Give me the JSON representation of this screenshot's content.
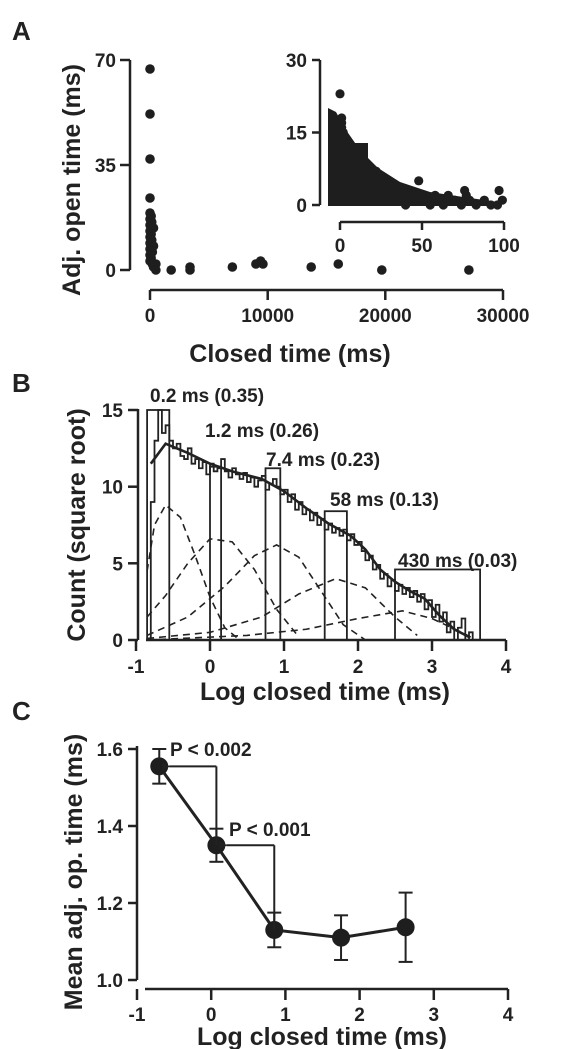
{
  "panels": {
    "A": {
      "letter": "A",
      "main": {
        "xlabel": "Closed time (ms)",
        "ylabel": "Adj. open time (ms)",
        "xticks": [
          "0",
          "10000",
          "20000",
          "30000"
        ],
        "yticks": [
          "0",
          "35",
          "70"
        ]
      },
      "inset": {
        "xticks": [
          "0",
          "50",
          "100"
        ],
        "yticks": [
          "0",
          "15",
          "30"
        ]
      }
    },
    "B": {
      "letter": "B",
      "xlabel": "Log closed time (ms)",
      "ylabel": "Count (square root)",
      "xticks": [
        "-1",
        "0",
        "1",
        "2",
        "3",
        "4"
      ],
      "yticks": [
        "0",
        "5",
        "10",
        "15"
      ],
      "components": [
        {
          "label": "0.2 ms (0.35)"
        },
        {
          "label": "1.2 ms (0.26)"
        },
        {
          "label": "7.4 ms (0.23)"
        },
        {
          "label": "58 ms (0.13)"
        },
        {
          "label": "430 ms (0.03)"
        }
      ]
    },
    "C": {
      "letter": "C",
      "xlabel": "Log closed time (ms)",
      "ylabel": "Mean adj. op. time (ms)",
      "xticks": [
        "-1",
        "0",
        "1",
        "2",
        "3",
        "4"
      ],
      "yticks": [
        "1.0",
        "1.2",
        "1.4",
        "1.6"
      ],
      "annotations": [
        "P < 0.002",
        "P < 0.001"
      ]
    }
  },
  "chart_data": [
    {
      "type": "scatter",
      "panel": "A",
      "xlabel": "Closed time (ms)",
      "ylabel": "Adj. open time (ms)",
      "xlim": [
        -1000,
        30000
      ],
      "ylim": [
        -3,
        70
      ],
      "points": [
        [
          0,
          67
        ],
        [
          0,
          52
        ],
        [
          0,
          37
        ],
        [
          0,
          24
        ],
        [
          0,
          19
        ],
        [
          0,
          17
        ],
        [
          0,
          15
        ],
        [
          0,
          13
        ],
        [
          0,
          11
        ],
        [
          0,
          9
        ],
        [
          0,
          7
        ],
        [
          0,
          5
        ],
        [
          0,
          3
        ],
        [
          100,
          18
        ],
        [
          100,
          12
        ],
        [
          100,
          8
        ],
        [
          100,
          4
        ],
        [
          150,
          16
        ],
        [
          150,
          10
        ],
        [
          200,
          6
        ],
        [
          200,
          2
        ],
        [
          300,
          14
        ],
        [
          300,
          8
        ],
        [
          300,
          1
        ],
        [
          500,
          2
        ],
        [
          500,
          0
        ],
        [
          1800,
          0
        ],
        [
          3400,
          0
        ],
        [
          3400,
          1
        ],
        [
          7000,
          1
        ],
        [
          9000,
          2
        ],
        [
          9400,
          3
        ],
        [
          9600,
          2
        ],
        [
          13700,
          1
        ],
        [
          16000,
          2
        ],
        [
          19700,
          0
        ],
        [
          27100,
          0
        ]
      ]
    },
    {
      "type": "scatter",
      "panel": "A-inset",
      "xlim": [
        -3,
        100
      ],
      "ylim": [
        -1,
        30
      ],
      "points": [
        [
          0,
          23
        ],
        [
          1,
          18
        ],
        [
          1,
          17
        ],
        [
          1,
          16
        ],
        [
          2,
          15
        ],
        [
          2,
          14
        ],
        [
          3,
          13
        ],
        [
          4,
          12
        ],
        [
          5,
          11
        ],
        [
          6,
          10
        ],
        [
          8,
          9
        ],
        [
          9,
          11
        ],
        [
          10,
          8
        ],
        [
          12,
          7
        ],
        [
          14,
          6
        ],
        [
          15,
          5
        ],
        [
          17,
          4
        ],
        [
          19,
          5
        ],
        [
          20,
          3
        ],
        [
          22,
          7
        ],
        [
          24,
          2
        ],
        [
          25,
          4
        ],
        [
          28,
          1
        ],
        [
          30,
          3
        ],
        [
          32,
          2
        ],
        [
          35,
          1
        ],
        [
          37,
          2
        ],
        [
          40,
          0
        ],
        [
          42,
          2
        ],
        [
          45,
          1
        ],
        [
          48,
          5
        ],
        [
          50,
          2
        ],
        [
          52,
          1
        ],
        [
          55,
          0
        ],
        [
          58,
          2
        ],
        [
          60,
          1
        ],
        [
          63,
          0
        ],
        [
          66,
          2
        ],
        [
          70,
          1
        ],
        [
          74,
          0
        ],
        [
          76,
          3
        ],
        [
          77,
          2
        ],
        [
          79,
          1
        ],
        [
          83,
          0
        ],
        [
          88,
          1
        ],
        [
          92,
          0
        ],
        [
          96,
          0
        ],
        [
          97,
          3
        ],
        [
          99,
          1
        ]
      ]
    },
    {
      "type": "histogram",
      "panel": "B",
      "xlabel": "Log closed time (ms)",
      "ylabel": "Count (square root)",
      "xlim": [
        -1,
        4
      ],
      "ylim": [
        0,
        15
      ],
      "bins": {
        "x": [
          -0.8,
          -0.75,
          -0.7,
          -0.65,
          -0.6,
          -0.55,
          -0.5,
          -0.45,
          -0.4,
          -0.35,
          -0.3,
          -0.25,
          -0.2,
          -0.15,
          -0.1,
          -0.05,
          0.0,
          0.05,
          0.1,
          0.15,
          0.2,
          0.25,
          0.3,
          0.35,
          0.4,
          0.45,
          0.5,
          0.55,
          0.6,
          0.65,
          0.7,
          0.75,
          0.8,
          0.85,
          0.9,
          0.95,
          1.0,
          1.05,
          1.1,
          1.15,
          1.2,
          1.25,
          1.3,
          1.35,
          1.4,
          1.45,
          1.5,
          1.55,
          1.6,
          1.65,
          1.7,
          1.75,
          1.8,
          1.85,
          1.9,
          1.95,
          2.0,
          2.05,
          2.1,
          2.15,
          2.2,
          2.25,
          2.3,
          2.35,
          2.4,
          2.45,
          2.5,
          2.55,
          2.6,
          2.65,
          2.7,
          2.75,
          2.8,
          2.85,
          2.9,
          2.95,
          3.0,
          3.05,
          3.1,
          3.15,
          3.2,
          3.25,
          3.3,
          3.35,
          3.4,
          3.45,
          3.5,
          3.55
        ],
        "counts": [
          9,
          13,
          15,
          13.5,
          14,
          13,
          12.5,
          12.8,
          12,
          11.8,
          12.5,
          11.5,
          11.8,
          11.2,
          11.6,
          10.8,
          11.5,
          11,
          11.2,
          11.8,
          11,
          10.6,
          11.2,
          10.8,
          10.5,
          10.9,
          10.3,
          10.6,
          10,
          10.4,
          10.7,
          9.8,
          10.2,
          10.5,
          10,
          9.5,
          9.8,
          9,
          9.5,
          8.5,
          9,
          8.2,
          8.5,
          7.8,
          8.3,
          7.5,
          7.9,
          7.2,
          7.6,
          7,
          7.3,
          6.8,
          7.2,
          6.5,
          6.9,
          6.2,
          6.4,
          5.8,
          5.2,
          5.5,
          4.6,
          4.9,
          4,
          4.3,
          3.5,
          3.9,
          3.2,
          3.6,
          3,
          3.4,
          2.8,
          3.2,
          2.5,
          3,
          2,
          2.6,
          1.5,
          2.3,
          1.2,
          1.8,
          0.5,
          1.2,
          0,
          0.8,
          1.4,
          0,
          0.5,
          0
        ]
      },
      "components": [
        {
          "label": "0.2 ms (0.35)",
          "range": [
            -0.85,
            -0.55
          ],
          "height": 15
        },
        {
          "label": "1.2 ms (0.26)",
          "range": [
            0.0,
            0.15
          ],
          "height": 11.3
        },
        {
          "label": "7.4 ms (0.23)",
          "range": [
            0.75,
            0.95
          ],
          "height": 11.2
        },
        {
          "label": "58 ms (0.13)",
          "range": [
            1.55,
            1.85
          ],
          "height": 8.4
        },
        {
          "label": "430 ms (0.03)",
          "range": [
            2.5,
            3.65
          ],
          "height": 4.6
        }
      ],
      "fit": [
        [
          -0.8,
          11.5
        ],
        [
          -0.6,
          12.8
        ],
        [
          -0.3,
          12.2
        ],
        [
          0.0,
          11.5
        ],
        [
          0.3,
          11.0
        ],
        [
          0.7,
          10.5
        ],
        [
          1.0,
          9.7
        ],
        [
          1.3,
          8.6
        ],
        [
          1.6,
          7.6
        ],
        [
          1.9,
          6.8
        ],
        [
          2.1,
          5.9
        ],
        [
          2.3,
          4.6
        ],
        [
          2.5,
          3.8
        ],
        [
          2.7,
          3.2
        ],
        [
          2.9,
          2.7
        ],
        [
          3.1,
          1.6
        ],
        [
          3.3,
          0.7
        ],
        [
          3.5,
          0.2
        ]
      ],
      "component_curves": [
        [
          [
            -0.85,
            4.5
          ],
          [
            -0.75,
            7.5
          ],
          [
            -0.6,
            8.8
          ],
          [
            -0.4,
            8.0
          ],
          [
            -0.2,
            5.5
          ],
          [
            0.0,
            2.8
          ],
          [
            0.2,
            0.8
          ],
          [
            0.4,
            0
          ]
        ],
        [
          [
            -0.85,
            1.5
          ],
          [
            -0.6,
            2.9
          ],
          [
            -0.3,
            5.0
          ],
          [
            0.0,
            6.6
          ],
          [
            0.3,
            6.4
          ],
          [
            0.6,
            4.6
          ],
          [
            0.9,
            2.0
          ],
          [
            1.2,
            0.2
          ]
        ],
        [
          [
            -0.85,
            0.3
          ],
          [
            -0.3,
            1.5
          ],
          [
            0.2,
            3.5
          ],
          [
            0.6,
            5.5
          ],
          [
            0.9,
            6.2
          ],
          [
            1.2,
            5.4
          ],
          [
            1.5,
            3.2
          ],
          [
            1.8,
            1.0
          ],
          [
            2.1,
            0
          ]
        ],
        [
          [
            -0.85,
            0.1
          ],
          [
            0.0,
            0.5
          ],
          [
            0.7,
            1.5
          ],
          [
            1.2,
            3.0
          ],
          [
            1.7,
            4.0
          ],
          [
            2.1,
            3.4
          ],
          [
            2.5,
            1.5
          ],
          [
            2.8,
            0.3
          ]
        ],
        [
          [
            -0.85,
            0
          ],
          [
            0.5,
            0.3
          ],
          [
            1.3,
            0.7
          ],
          [
            2.0,
            1.4
          ],
          [
            2.6,
            1.9
          ],
          [
            3.0,
            1.4
          ],
          [
            3.4,
            0.5
          ],
          [
            3.6,
            0
          ]
        ]
      ]
    },
    {
      "type": "scatter",
      "panel": "C",
      "xlabel": "Log closed time (ms)",
      "ylabel": "Mean adj. op. time (ms)",
      "xlim": [
        -1,
        4
      ],
      "ylim": [
        1.0,
        1.6
      ],
      "points": [
        {
          "x": -0.7,
          "y": 1.555,
          "err": 0.045
        },
        {
          "x": 0.07,
          "y": 1.35,
          "err": 0.043
        },
        {
          "x": 0.85,
          "y": 1.13,
          "err": 0.045
        },
        {
          "x": 1.75,
          "y": 1.11,
          "err": 0.058
        },
        {
          "x": 2.62,
          "y": 1.137,
          "err": 0.09
        }
      ],
      "annotations": [
        {
          "text": "P < 0.002",
          "from": -0.7,
          "to": 0.07
        },
        {
          "text": "P < 0.001",
          "from": 0.07,
          "to": 0.85
        }
      ]
    }
  ]
}
